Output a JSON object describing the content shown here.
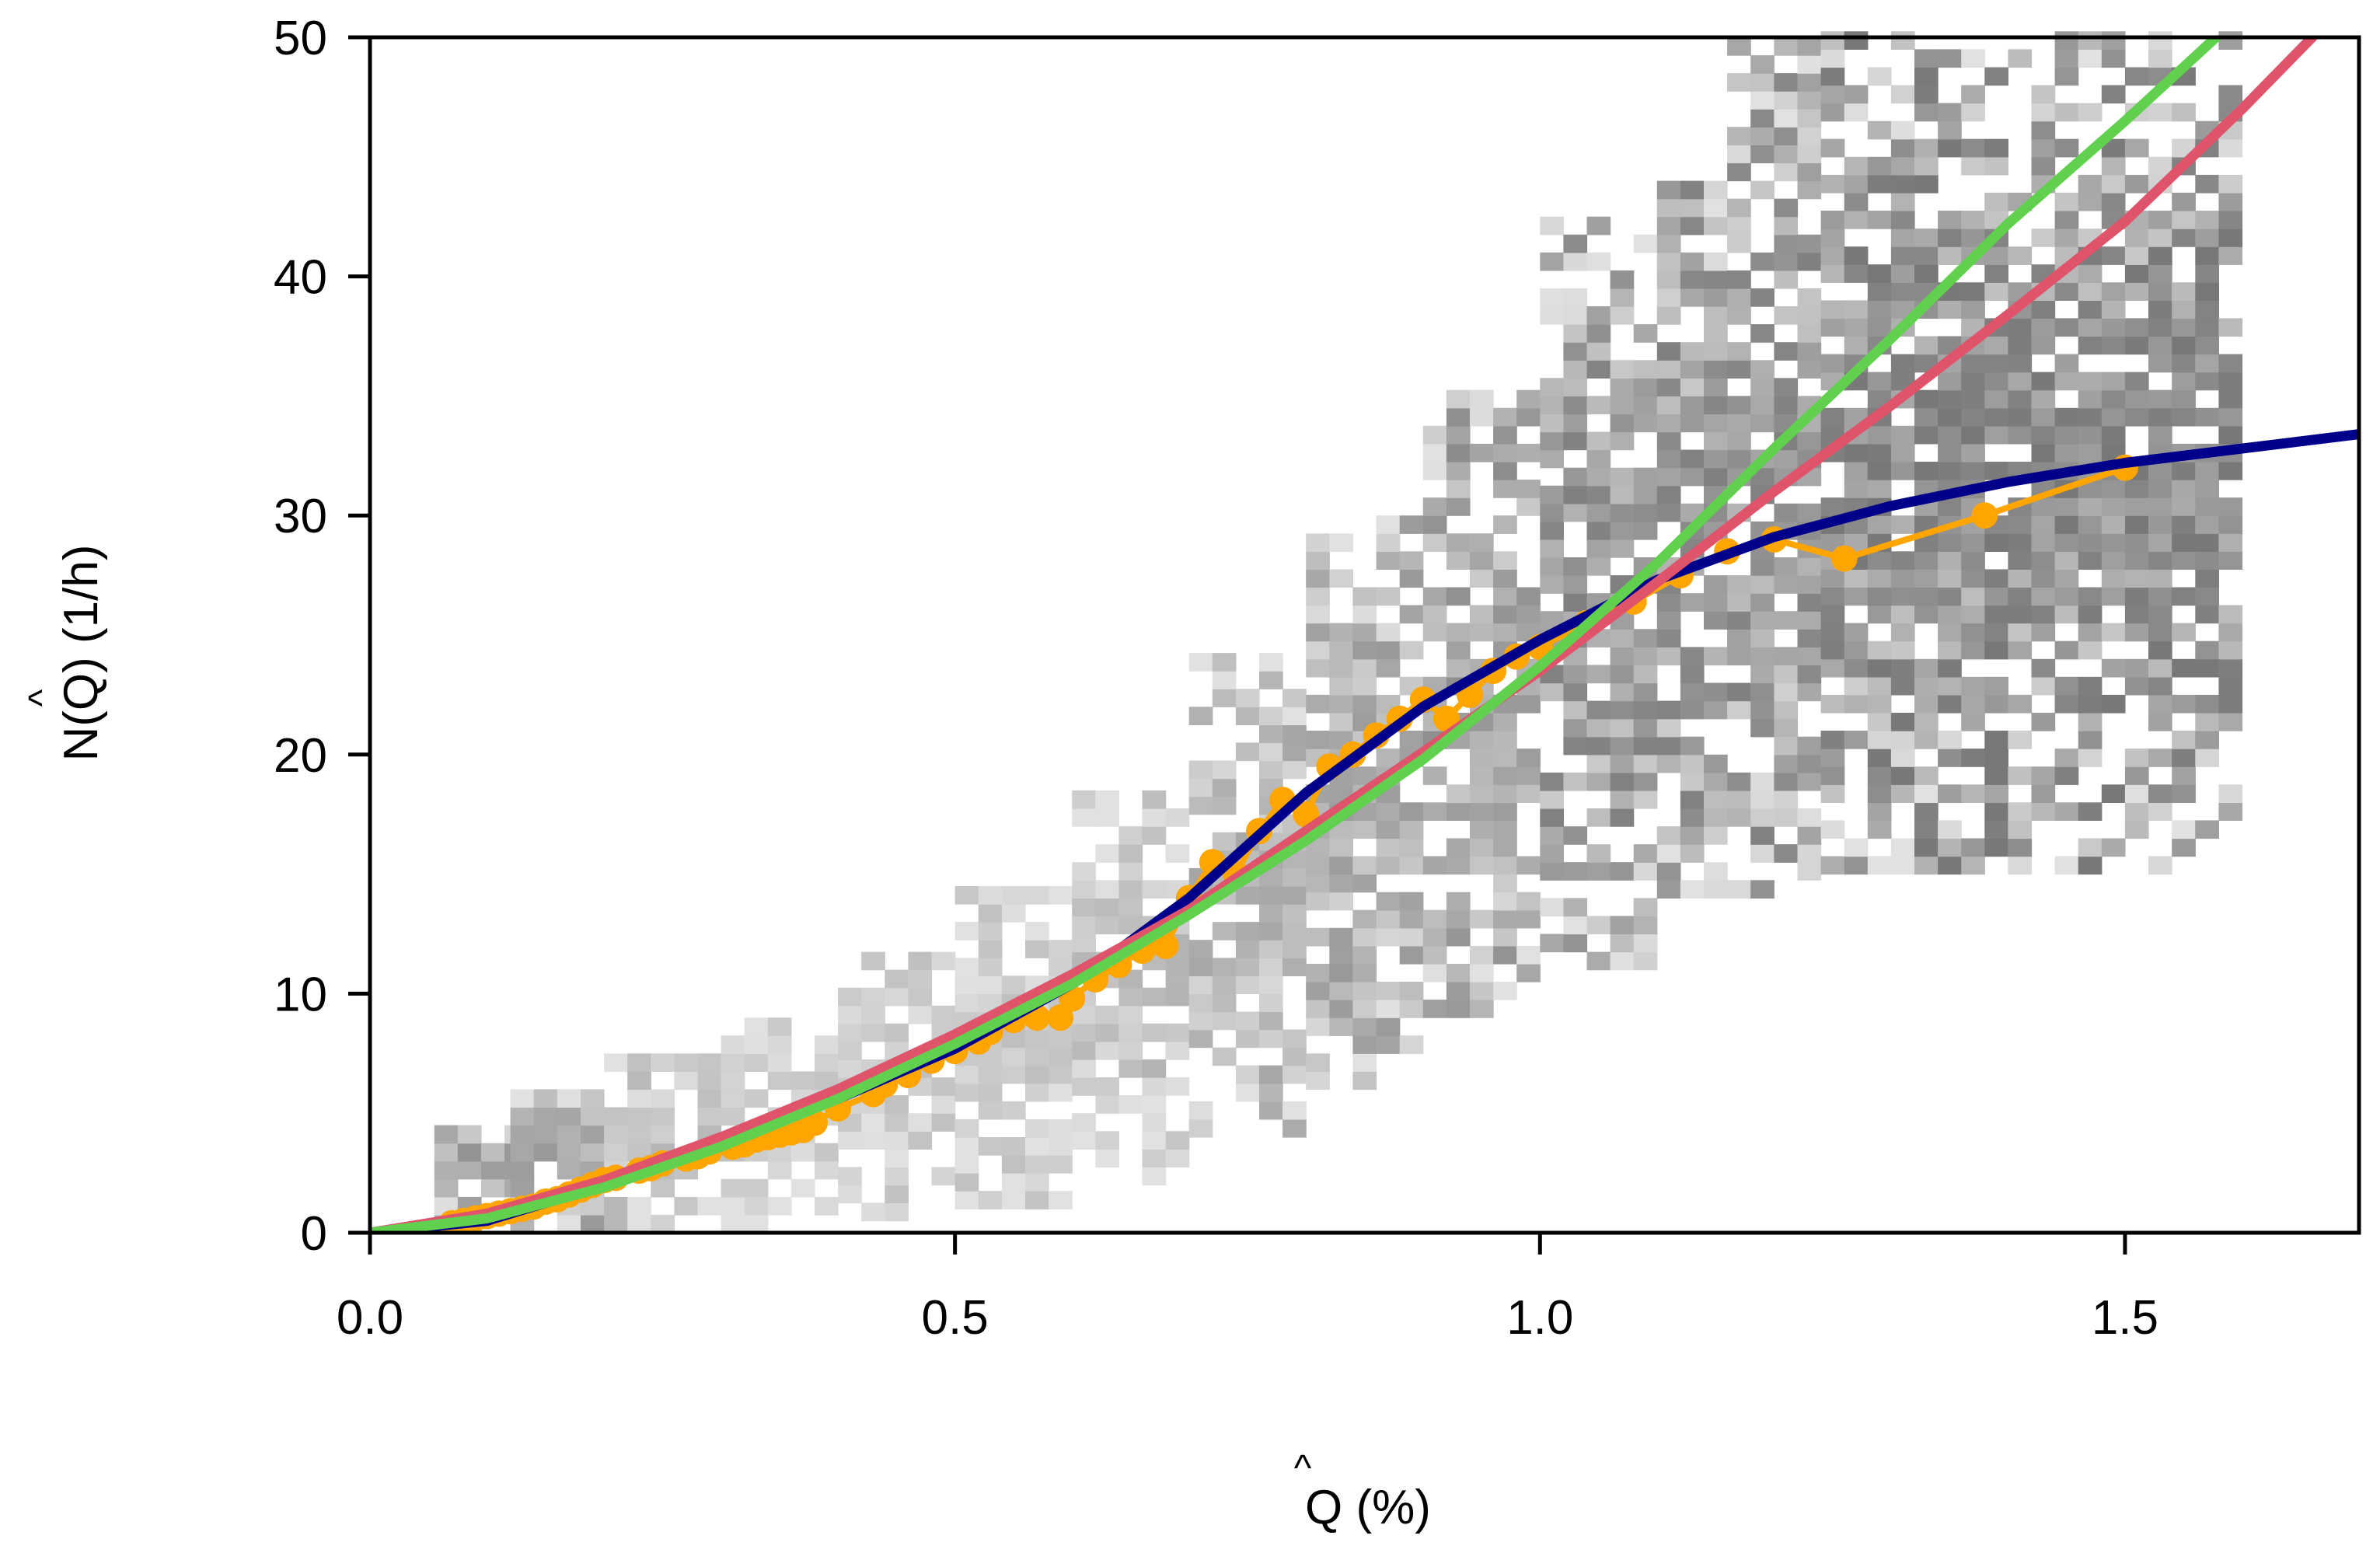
{
  "chart_data": {
    "type": "scatter",
    "title": "",
    "xlabel": {
      "symbol": "Q",
      "hat": "^",
      "unit": " (%)"
    },
    "ylabel": {
      "prefix": "N(",
      "symbol": "Q",
      "hat": "^",
      "suffix": ") (1/h)"
    },
    "xlim": [
      0,
      1.7
    ],
    "ylim": [
      0,
      50
    ],
    "xticks": [
      {
        "value": 0.0,
        "label": "0.0"
      },
      {
        "value": 0.5,
        "label": "0.5"
      },
      {
        "value": 1.0,
        "label": "1.0"
      },
      {
        "value": 1.5,
        "label": "1.5"
      }
    ],
    "yticks": [
      {
        "value": 0,
        "label": "0"
      },
      {
        "value": 10,
        "label": "10"
      },
      {
        "value": 20,
        "label": "20"
      },
      {
        "value": 30,
        "label": "30"
      },
      {
        "value": 40,
        "label": "40"
      },
      {
        "value": 50,
        "label": "50"
      }
    ],
    "grid": false,
    "legend": "none",
    "colors": {
      "observed": "#FFA500",
      "blue_fit": "#00008B",
      "green_fit": "#61D04F",
      "red_fit": "#DF536B",
      "density": "#808080"
    },
    "density": {
      "description_hidden": true,
      "bands": [
        {
          "x": [
            0.055,
            0.12
          ],
          "y": [
            0,
            4.5
          ],
          "level": 0.55
        },
        {
          "x": [
            0.12,
            0.2
          ],
          "y": [
            0,
            6
          ],
          "level": 0.6
        },
        {
          "x": [
            0.2,
            0.3
          ],
          "y": [
            0,
            7
          ],
          "level": 0.7
        },
        {
          "x": [
            0.3,
            0.4
          ],
          "y": [
            0,
            9
          ],
          "level": 0.75
        },
        {
          "x": [
            0.4,
            0.5
          ],
          "y": [
            0.5,
            12
          ],
          "level": 0.75
        },
        {
          "x": [
            0.5,
            0.6
          ],
          "y": [
            1,
            14
          ],
          "level": 0.75
        },
        {
          "x": [
            0.6,
            0.7
          ],
          "y": [
            2,
            18
          ],
          "level": 0.7
        },
        {
          "x": [
            0.7,
            0.8
          ],
          "y": [
            4,
            24
          ],
          "level": 0.65
        },
        {
          "x": [
            0.8,
            0.9
          ],
          "y": [
            6,
            30
          ],
          "level": 0.6
        },
        {
          "x": [
            0.9,
            1.0
          ],
          "y": [
            9,
            35
          ],
          "level": 0.55
        },
        {
          "x": [
            1.0,
            1.1
          ],
          "y": [
            11,
            42
          ],
          "level": 0.5
        },
        {
          "x": [
            1.1,
            1.16
          ],
          "y": [
            14,
            44
          ],
          "level": 0.5
        },
        {
          "x": [
            1.16,
            1.24
          ],
          "y": [
            14,
            50
          ],
          "level": 0.5
        },
        {
          "x": [
            1.24,
            1.38
          ],
          "y": [
            15,
            50
          ],
          "level": 0.45
        },
        {
          "x": [
            1.38,
            1.6
          ],
          "y": [
            15,
            50
          ],
          "level": 0.45
        }
      ]
    },
    "series": [
      {
        "type": "scatter-line",
        "color": "#FFA500",
        "x": [
          0.07,
          0.08,
          0.09,
          0.1,
          0.11,
          0.12,
          0.13,
          0.14,
          0.15,
          0.16,
          0.17,
          0.18,
          0.19,
          0.2,
          0.21,
          0.23,
          0.24,
          0.25,
          0.27,
          0.28,
          0.29,
          0.31,
          0.32,
          0.33,
          0.34,
          0.35,
          0.36,
          0.37,
          0.38,
          0.4,
          0.43,
          0.44,
          0.46,
          0.48,
          0.5,
          0.52,
          0.53,
          0.55,
          0.57,
          0.59,
          0.6,
          0.62,
          0.64,
          0.66,
          0.68,
          0.7,
          0.72,
          0.74,
          0.76,
          0.78,
          0.8,
          0.82,
          0.84,
          0.86,
          0.88,
          0.9,
          0.92,
          0.94,
          0.96,
          0.98,
          1.0,
          1.04,
          1.08,
          1.12,
          1.16,
          1.2,
          1.26,
          1.38,
          1.5
        ],
        "y": [
          0.4,
          0.5,
          0.6,
          0.7,
          0.8,
          0.9,
          1.0,
          1.1,
          1.3,
          1.4,
          1.6,
          1.8,
          2.0,
          2.2,
          2.3,
          2.6,
          2.7,
          2.9,
          3.1,
          3.2,
          3.4,
          3.6,
          3.7,
          3.9,
          4.0,
          4.1,
          4.2,
          4.3,
          4.6,
          5.2,
          5.8,
          6.2,
          6.6,
          7.2,
          7.6,
          8.0,
          8.4,
          8.9,
          9.0,
          9.0,
          9.8,
          10.6,
          11.2,
          11.8,
          12.0,
          14.0,
          15.5,
          15.0,
          16.8,
          18.1,
          17.5,
          19.5,
          20.0,
          20.8,
          21.5,
          22.3,
          21.5,
          22.5,
          23.5,
          24.1,
          24.5,
          25.5,
          26.4,
          27.5,
          28.5,
          29.0,
          28.2,
          30.0,
          32.0
        ]
      },
      {
        "type": "line",
        "color": "#00008B",
        "x": [
          0,
          0.1,
          0.2,
          0.3,
          0.4,
          0.5,
          0.6,
          0.7,
          0.8,
          0.9,
          1.0,
          1.1,
          1.2,
          1.3,
          1.4,
          1.5,
          1.6,
          1.7
        ],
        "y": [
          0,
          0.5,
          2.0,
          3.9,
          5.6,
          7.7,
          10.4,
          14.0,
          18.4,
          22.0,
          24.8,
          27.3,
          29.1,
          30.4,
          31.4,
          32.2,
          32.8,
          33.4
        ]
      },
      {
        "type": "line",
        "color": "#61D04F",
        "x": [
          0,
          0.1,
          0.2,
          0.3,
          0.4,
          0.5,
          0.6,
          0.7,
          0.8,
          0.9,
          1.0,
          1.1,
          1.2,
          1.3,
          1.4,
          1.5,
          1.6
        ],
        "y": [
          0,
          0.6,
          1.9,
          3.6,
          5.6,
          7.9,
          10.4,
          13.3,
          16.4,
          19.8,
          23.7,
          28.0,
          32.8,
          37.4,
          42.2,
          46.5,
          51.0
        ]
      },
      {
        "type": "line",
        "color": "#DF536B",
        "x": [
          0,
          0.1,
          0.2,
          0.3,
          0.4,
          0.5,
          0.6,
          0.7,
          0.8,
          0.9,
          1.0,
          1.1,
          1.2,
          1.3,
          1.4,
          1.5,
          1.6,
          1.66
        ],
        "y": [
          0,
          0.8,
          2.2,
          4.0,
          6.0,
          8.3,
          10.8,
          13.5,
          16.8,
          20.1,
          23.5,
          27.2,
          31.0,
          34.6,
          38.4,
          42.3,
          47.0,
          50.0
        ]
      }
    ]
  }
}
